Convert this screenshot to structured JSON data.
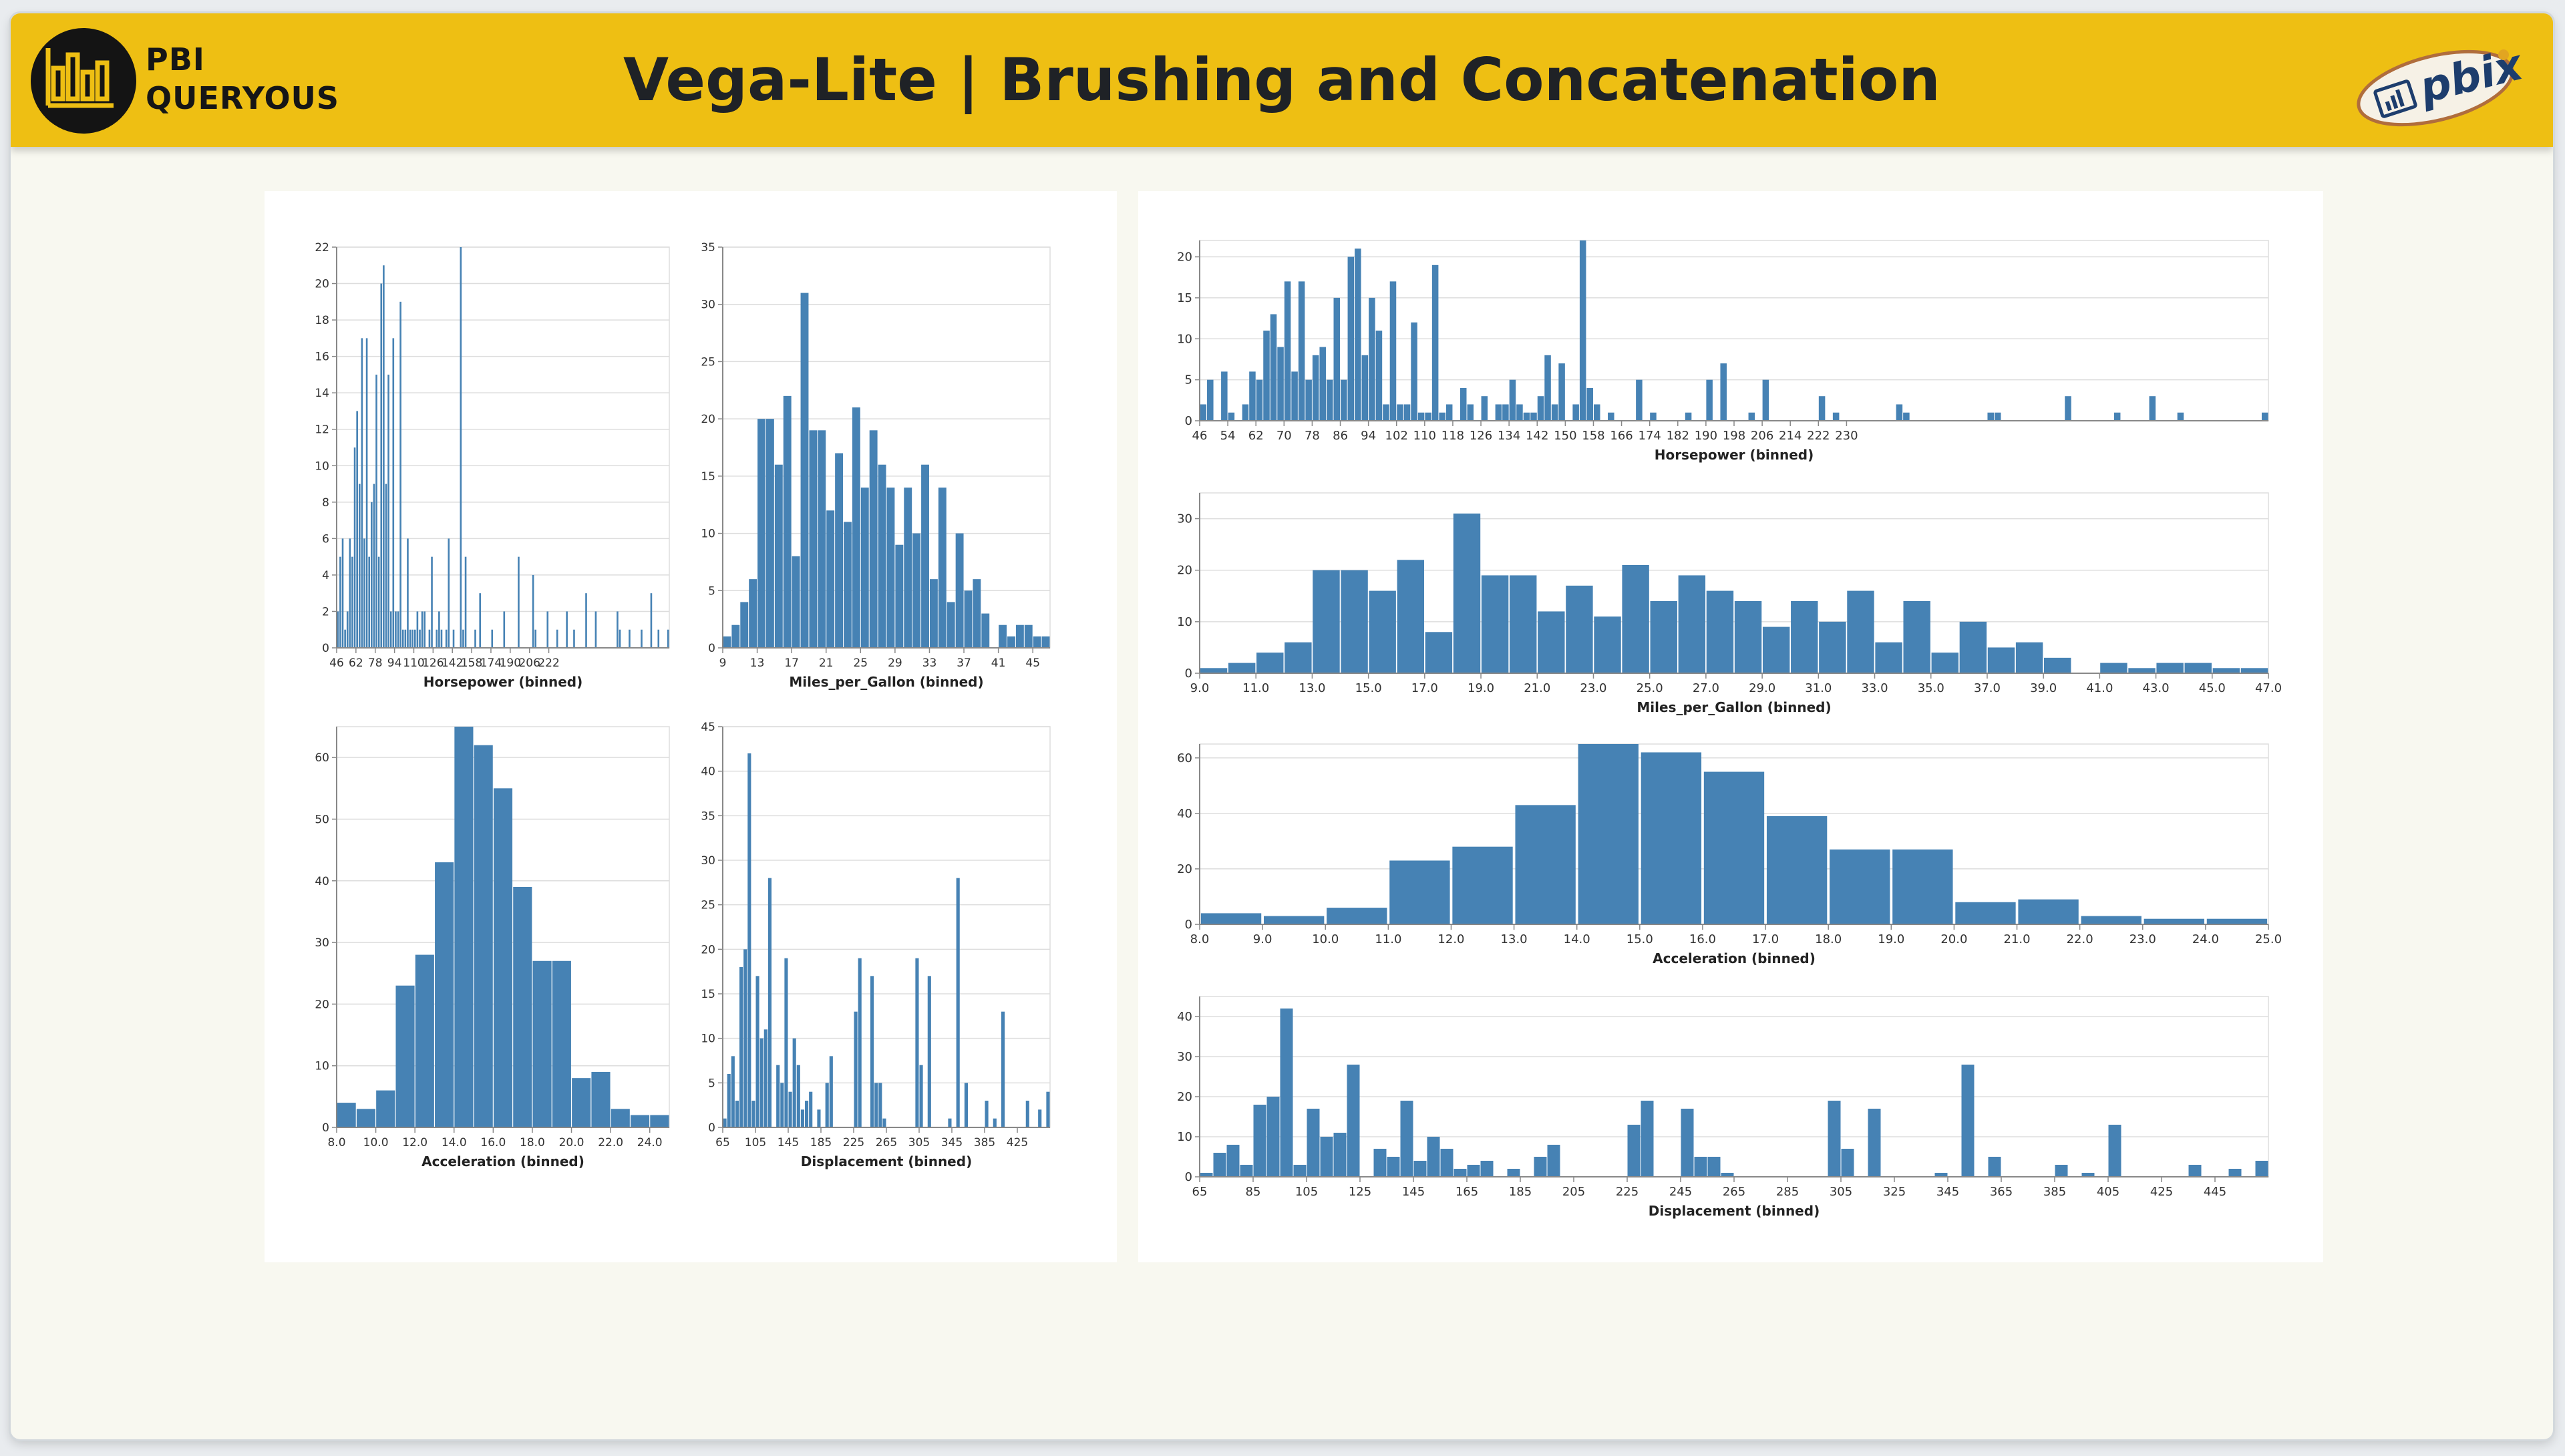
{
  "page": {
    "title": "Vega-Lite | Brushing and Concatenation"
  },
  "logo": {
    "line1": "PBI",
    "line2": "QUERYOUS",
    "icon": "bar-chart-icon"
  },
  "badge": {
    "text": "pbix",
    "icon": "report-icon"
  },
  "colors": {
    "header": "#eebf13",
    "bar": "#4682b4",
    "grid": "#dddddd",
    "axis": "#888888"
  },
  "chart_data": [
    {
      "id": "left-horsepower",
      "type": "bar",
      "xlabel": "Horsepower (binned)",
      "ylabel": "",
      "bin_start": 46,
      "bin_step": 2,
      "ylim": [
        0,
        22
      ],
      "x_ticks": [
        "46",
        "62",
        "78",
        "94",
        "110",
        "126",
        "142",
        "158",
        "174",
        "190",
        "206",
        "222"
      ],
      "y_ticks": [
        "0",
        "2",
        "4",
        "6",
        "8",
        "10",
        "12",
        "14",
        "16",
        "18",
        "20",
        "22"
      ],
      "values": [
        2,
        5,
        6,
        1,
        2,
        6,
        5,
        11,
        13,
        9,
        17,
        6,
        17,
        5,
        8,
        9,
        15,
        5,
        20,
        21,
        9,
        15,
        2,
        17,
        2,
        2,
        19,
        1,
        1,
        6,
        1,
        1,
        1,
        2,
        1,
        2,
        2,
        0,
        1,
        5,
        0,
        1,
        2,
        1,
        0,
        1,
        6,
        0,
        1,
        0,
        0,
        22,
        1,
        5,
        0,
        0,
        0,
        1,
        0,
        3,
        0,
        0,
        0,
        0,
        1,
        0,
        0,
        0,
        0,
        2,
        0,
        0,
        0,
        0,
        0,
        5,
        0,
        0,
        0,
        0,
        0,
        4,
        1,
        0,
        0,
        0,
        0,
        2,
        0,
        0,
        0,
        1,
        0,
        0,
        0,
        2,
        0,
        0,
        1,
        0,
        0,
        0,
        0,
        3,
        0,
        0,
        0,
        2,
        0,
        0,
        0,
        0,
        0,
        0,
        0,
        0,
        2,
        1,
        0,
        0,
        0,
        1,
        0,
        0,
        0,
        0,
        1,
        0,
        0,
        0,
        3,
        0,
        0,
        1,
        0,
        0,
        0,
        1
      ]
    },
    {
      "id": "left-mpg",
      "type": "bar",
      "xlabel": "Miles_per_Gallon (binned)",
      "ylabel": "",
      "bin_start": 9,
      "bin_step": 1,
      "ylim": [
        0,
        35
      ],
      "x_ticks": [
        "9",
        "13",
        "17",
        "21",
        "25",
        "29",
        "33",
        "37",
        "41",
        "45"
      ],
      "y_ticks": [
        "0",
        "5",
        "10",
        "15",
        "20",
        "25",
        "30",
        "35"
      ],
      "values": [
        1,
        2,
        4,
        6,
        20,
        20,
        16,
        22,
        8,
        31,
        19,
        19,
        12,
        17,
        11,
        21,
        14,
        19,
        16,
        14,
        9,
        14,
        10,
        16,
        6,
        14,
        4,
        10,
        5,
        6,
        3,
        0,
        2,
        1,
        2,
        2,
        1,
        1
      ]
    },
    {
      "id": "left-acceleration",
      "type": "bar",
      "xlabel": "Acceleration (binned)",
      "ylabel": "",
      "bin_start": 8,
      "bin_step": 1,
      "ylim": [
        0,
        65
      ],
      "x_ticks": [
        "8.0",
        "10.0",
        "12.0",
        "14.0",
        "16.0",
        "18.0",
        "20.0",
        "22.0",
        "24.0"
      ],
      "y_ticks": [
        "0",
        "10",
        "20",
        "30",
        "40",
        "50",
        "60"
      ],
      "values": [
        4,
        3,
        6,
        23,
        28,
        43,
        65,
        62,
        55,
        39,
        27,
        27,
        8,
        9,
        3,
        2,
        2
      ]
    },
    {
      "id": "left-displacement",
      "type": "bar",
      "xlabel": "Displacement (binned)",
      "ylabel": "",
      "bin_start": 65,
      "bin_step": 5,
      "ylim": [
        0,
        45
      ],
      "x_ticks": [
        "65",
        "105",
        "145",
        "185",
        "225",
        "265",
        "305",
        "345",
        "385",
        "425"
      ],
      "y_ticks": [
        "0",
        "5",
        "10",
        "15",
        "20",
        "25",
        "30",
        "35",
        "40",
        "45"
      ],
      "values": [
        1,
        6,
        8,
        3,
        18,
        20,
        42,
        3,
        17,
        10,
        11,
        28,
        0,
        7,
        5,
        19,
        4,
        10,
        7,
        2,
        3,
        4,
        0,
        2,
        0,
        5,
        8,
        0,
        0,
        0,
        0,
        0,
        13,
        19,
        0,
        0,
        17,
        5,
        5,
        1,
        0,
        0,
        0,
        0,
        0,
        0,
        0,
        19,
        7,
        0,
        17,
        0,
        0,
        0,
        0,
        1,
        0,
        28,
        0,
        5,
        0,
        0,
        0,
        0,
        3,
        0,
        1,
        0,
        13,
        0,
        0,
        0,
        0,
        0,
        3,
        0,
        0,
        2,
        0,
        4
      ]
    },
    {
      "id": "right-horsepower",
      "type": "bar",
      "xlabel": "Horsepower (binned)",
      "ylabel": "",
      "bin_start": 46,
      "bin_step": 2,
      "ylim": [
        0,
        22
      ],
      "x_ticks": [
        "46",
        "54",
        "62",
        "70",
        "78",
        "86",
        "94",
        "102",
        "110",
        "118",
        "126",
        "134",
        "142",
        "150",
        "158",
        "166",
        "174",
        "182",
        "190",
        "198",
        "206",
        "214",
        "222",
        "230"
      ],
      "y_ticks": [
        "0",
        "5",
        "10",
        "15",
        "20"
      ],
      "values": [
        2,
        5,
        0,
        6,
        1,
        0,
        2,
        6,
        5,
        11,
        13,
        9,
        17,
        6,
        17,
        5,
        8,
        9,
        5,
        15,
        5,
        20,
        21,
        8,
        15,
        11,
        2,
        17,
        2,
        2,
        12,
        1,
        1,
        19,
        1,
        2,
        0,
        4,
        2,
        0,
        3,
        0,
        2,
        2,
        5,
        2,
        1,
        1,
        3,
        8,
        2,
        7,
        0,
        2,
        22,
        4,
        2,
        0,
        1,
        0,
        0,
        0,
        5,
        0,
        1,
        0,
        0,
        0,
        0,
        1,
        0,
        0,
        5,
        0,
        7,
        0,
        0,
        0,
        1,
        0,
        5,
        0,
        0,
        0,
        0,
        0,
        0,
        0,
        3,
        0,
        1,
        0,
        0,
        0,
        0,
        0,
        0,
        0,
        0,
        2,
        1,
        0,
        0,
        0,
        0,
        0,
        0,
        0,
        0,
        0,
        0,
        0,
        1,
        1,
        0,
        0,
        0,
        0,
        0,
        0,
        0,
        0,
        0,
        3,
        0,
        0,
        0,
        0,
        0,
        0,
        1,
        0,
        0,
        0,
        0,
        3,
        0,
        0,
        0,
        1,
        0,
        0,
        0,
        0,
        0,
        0,
        0,
        0,
        0,
        0,
        0,
        1
      ]
    },
    {
      "id": "right-mpg",
      "type": "bar",
      "xlabel": "Miles_per_Gallon (binned)",
      "ylabel": "",
      "bin_start": 9,
      "bin_step": 1,
      "ylim": [
        0,
        35
      ],
      "x_ticks": [
        "9.0",
        "11.0",
        "13.0",
        "15.0",
        "17.0",
        "19.0",
        "21.0",
        "23.0",
        "25.0",
        "27.0",
        "29.0",
        "31.0",
        "33.0",
        "35.0",
        "37.0",
        "39.0",
        "41.0",
        "43.0",
        "45.0",
        "47.0"
      ],
      "y_ticks": [
        "0",
        "10",
        "20",
        "30"
      ],
      "values": [
        1,
        2,
        4,
        6,
        20,
        20,
        16,
        22,
        8,
        31,
        19,
        19,
        12,
        17,
        11,
        21,
        14,
        19,
        16,
        14,
        9,
        14,
        10,
        16,
        6,
        14,
        4,
        10,
        5,
        6,
        3,
        0,
        2,
        1,
        2,
        2,
        1,
        1
      ]
    },
    {
      "id": "right-acceleration",
      "type": "bar",
      "xlabel": "Acceleration (binned)",
      "ylabel": "",
      "bin_start": 8,
      "bin_step": 1,
      "ylim": [
        0,
        65
      ],
      "x_ticks": [
        "8.0",
        "9.0",
        "10.0",
        "11.0",
        "12.0",
        "13.0",
        "14.0",
        "15.0",
        "16.0",
        "17.0",
        "18.0",
        "19.0",
        "20.0",
        "21.0",
        "22.0",
        "23.0",
        "24.0",
        "25.0"
      ],
      "y_ticks": [
        "0",
        "20",
        "40",
        "60"
      ],
      "values": [
        4,
        3,
        6,
        23,
        28,
        43,
        65,
        62,
        55,
        39,
        27,
        27,
        8,
        9,
        3,
        2,
        2
      ]
    },
    {
      "id": "right-displacement",
      "type": "bar",
      "xlabel": "Displacement (binned)",
      "ylabel": "",
      "bin_start": 65,
      "bin_step": 5,
      "ylim": [
        0,
        45
      ],
      "x_ticks": [
        "65",
        "85",
        "105",
        "125",
        "145",
        "165",
        "185",
        "205",
        "225",
        "245",
        "265",
        "285",
        "305",
        "325",
        "345",
        "365",
        "385",
        "405",
        "425",
        "445"
      ],
      "y_ticks": [
        "0",
        "10",
        "20",
        "30",
        "40"
      ],
      "values": [
        1,
        6,
        8,
        3,
        18,
        20,
        42,
        3,
        17,
        10,
        11,
        28,
        0,
        7,
        5,
        19,
        4,
        10,
        7,
        2,
        3,
        4,
        0,
        2,
        0,
        5,
        8,
        0,
        0,
        0,
        0,
        0,
        13,
        19,
        0,
        0,
        17,
        5,
        5,
        1,
        0,
        0,
        0,
        0,
        0,
        0,
        0,
        19,
        7,
        0,
        17,
        0,
        0,
        0,
        0,
        1,
        0,
        28,
        0,
        5,
        0,
        0,
        0,
        0,
        3,
        0,
        1,
        0,
        13,
        0,
        0,
        0,
        0,
        0,
        3,
        0,
        0,
        2,
        0,
        4
      ]
    }
  ]
}
